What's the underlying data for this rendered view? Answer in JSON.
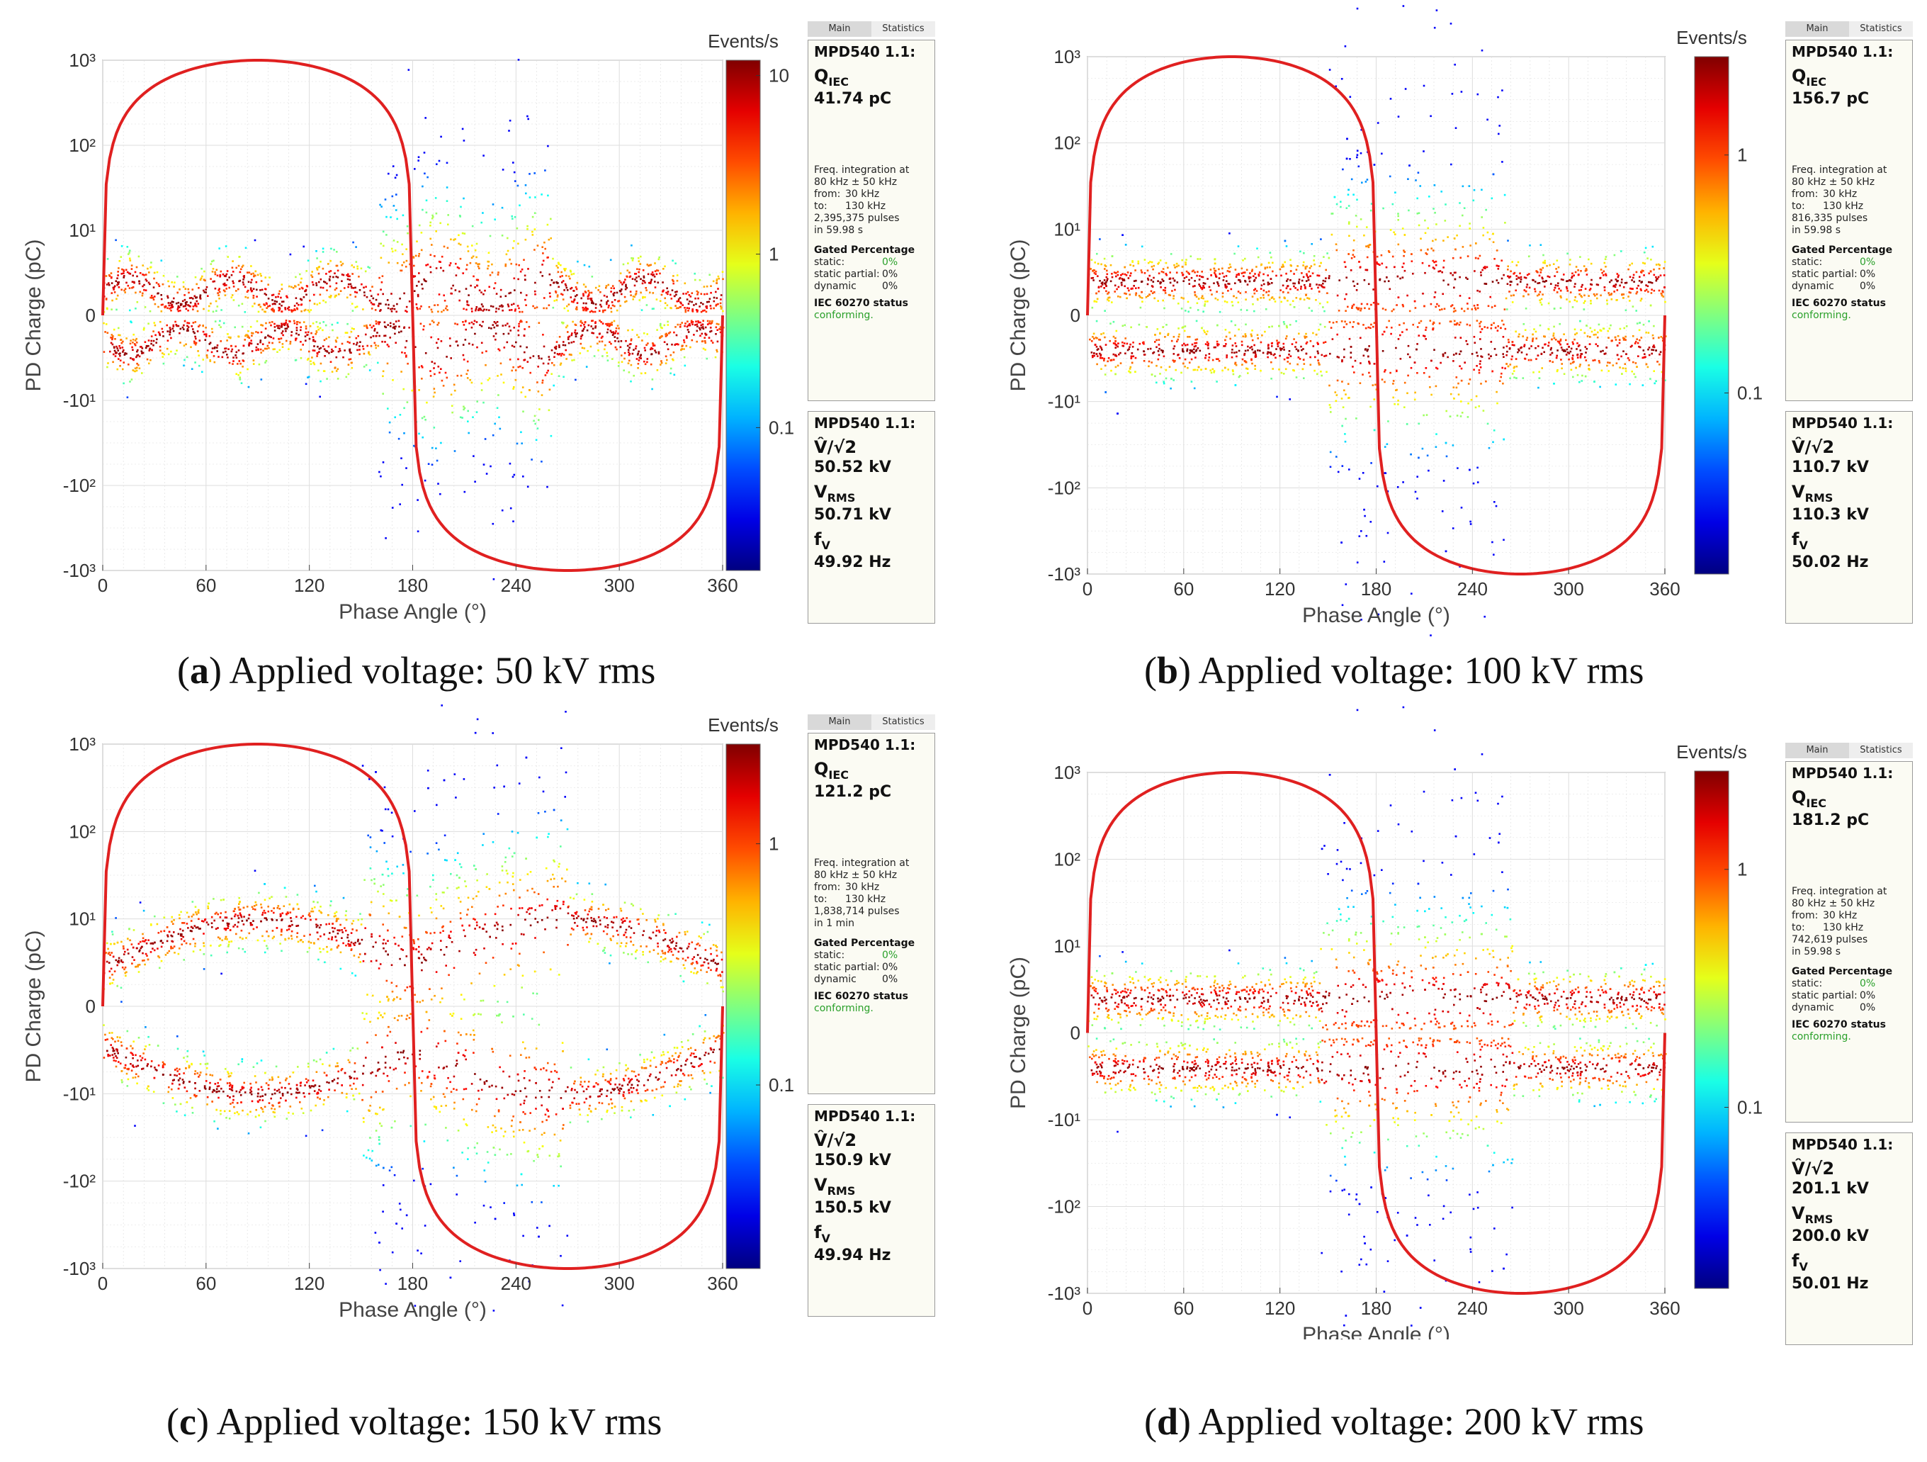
{
  "panels": [
    {
      "id": "a",
      "caption_letter": "a",
      "caption_text": "Applied voltage: 50 kV rms",
      "chart_data": {
        "type": "scatter",
        "xlabel": "Phase Angle (°)",
        "ylabel": "PD Charge (pC)",
        "xlim": [
          0,
          360
        ],
        "x_ticks": [
          "0",
          "60",
          "120",
          "180",
          "240",
          "300",
          "360"
        ],
        "y_ticks": [
          "10³",
          "10²",
          "10¹",
          "0",
          "-10¹",
          "-10²",
          "-10³"
        ],
        "y_scale": "symmetric-log",
        "grid": true,
        "colorbar_label": "Events/s",
        "colorbar_ticks": [
          "10",
          "1",
          "0.1"
        ],
        "sine_peak_pC": 1000,
        "band_center_pC": 3,
        "band_modulation": "wavy",
        "scatter_phase_range": [
          160,
          260
        ],
        "scatter_extent_pC": 60
      },
      "info": {
        "tab_main": "Main",
        "tab_stats": "Statistics",
        "instrument": "MPD540 1.1:",
        "q_label": "Q",
        "q_sub": "IEC",
        "q_value": "41.74 pC",
        "freq_line1": "Freq. integration at",
        "freq_line2": "80 kHz ± 50 kHz",
        "from_label": "from:",
        "from_value": "30 kHz",
        "to_label": "to:",
        "to_value": "130 kHz",
        "pulses": "2,395,375 pulses",
        "duration": "in 59.98 s",
        "gated_title": "Gated Percentage",
        "static_label": "static:",
        "static_value": "0%",
        "static_partial_label": "static partial:",
        "static_partial_value": "0%",
        "dynamic_label": "dynamic",
        "dynamic_value": "0%",
        "status_title": "IEC 60270 status",
        "status_value": "conforming.",
        "v_label": "V̂/√2",
        "v_value": "50.52 kV",
        "vrms_label": "V",
        "vrms_sub": "RMS",
        "vrms_value": "50.71 kV",
        "f_label": "f",
        "f_sub": "V",
        "f_value": "49.92 Hz"
      }
    },
    {
      "id": "b",
      "caption_letter": "b",
      "caption_text": "Applied voltage: 100 kV rms",
      "chart_data": {
        "type": "scatter",
        "xlabel": "Phase Angle (°)",
        "ylabel": "PD Charge (pC)",
        "xlim": [
          0,
          360
        ],
        "x_ticks": [
          "0",
          "60",
          "120",
          "180",
          "240",
          "300",
          "360"
        ],
        "y_ticks": [
          "10³",
          "10²",
          "10¹",
          "0",
          "-10¹",
          "-10²",
          "-10³"
        ],
        "y_scale": "symmetric-log",
        "grid": true,
        "colorbar_label": "Events/s",
        "colorbar_ticks": [
          "1",
          "0.1"
        ],
        "sine_peak_pC": 1000,
        "band_center_pC": 4,
        "band_modulation": "flat",
        "scatter_phase_range": [
          150,
          260
        ],
        "scatter_extent_pC": 200
      },
      "info": {
        "tab_main": "Main",
        "tab_stats": "Statistics",
        "instrument": "MPD540 1.1:",
        "q_label": "Q",
        "q_sub": "IEC",
        "q_value": "156.7 pC",
        "freq_line1": "Freq. integration at",
        "freq_line2": "80 kHz ± 50 kHz",
        "from_label": "from:",
        "from_value": "30 kHz",
        "to_label": "to:",
        "to_value": "130 kHz",
        "pulses": "816,335 pulses",
        "duration": "in 59.98 s",
        "gated_title": "Gated Percentage",
        "static_label": "static:",
        "static_value": "0%",
        "static_partial_label": "static partial:",
        "static_partial_value": "0%",
        "dynamic_label": "dynamic",
        "dynamic_value": "0%",
        "status_title": "IEC 60270 status",
        "status_value": "conforming.",
        "v_label": "V̂/√2",
        "v_value": "110.7 kV",
        "vrms_label": "V",
        "vrms_sub": "RMS",
        "vrms_value": "110.3 kV",
        "f_label": "f",
        "f_sub": "V",
        "f_value": "50.02 Hz"
      }
    },
    {
      "id": "c",
      "caption_letter": "c",
      "caption_text": "Applied voltage: 150 kV rms",
      "chart_data": {
        "type": "scatter",
        "xlabel": "Phase Angle (°)",
        "ylabel": "PD Charge (pC)",
        "xlim": [
          0,
          360
        ],
        "x_ticks": [
          "0",
          "60",
          "120",
          "180",
          "240",
          "300",
          "360"
        ],
        "y_ticks": [
          "10³",
          "10²",
          "10¹",
          "0",
          "-10¹",
          "-10²",
          "-10³"
        ],
        "y_scale": "symmetric-log",
        "grid": true,
        "colorbar_label": "Events/s",
        "colorbar_ticks": [
          "1",
          "0.1"
        ],
        "sine_peak_pC": 1000,
        "band_center_pC": 6,
        "band_modulation": "sine",
        "scatter_phase_range": [
          150,
          270
        ],
        "scatter_extent_pC": 200
      },
      "info": {
        "tab_main": "Main",
        "tab_stats": "Statistics",
        "instrument": "MPD540 1.1:",
        "q_label": "Q",
        "q_sub": "IEC",
        "q_value": "121.2 pC",
        "freq_line1": "Freq. integration at",
        "freq_line2": "80 kHz ± 50 kHz",
        "from_label": "from:",
        "from_value": "30 kHz",
        "to_label": "to:",
        "to_value": "130 kHz",
        "pulses": "1,838,714 pulses",
        "duration": "in 1 min",
        "gated_title": "Gated Percentage",
        "static_label": "static:",
        "static_value": "0%",
        "static_partial_label": "static partial:",
        "static_partial_value": "0%",
        "dynamic_label": "dynamic",
        "dynamic_value": "0%",
        "status_title": "IEC 60270 status",
        "status_value": "conforming.",
        "v_label": "V̂/√2",
        "v_value": "150.9 kV",
        "vrms_label": "V",
        "vrms_sub": "RMS",
        "vrms_value": "150.5 kV",
        "f_label": "f",
        "f_sub": "V",
        "f_value": "49.94 Hz"
      }
    },
    {
      "id": "d",
      "caption_letter": "d",
      "caption_text": "Applied voltage: 200 kV rms",
      "chart_data": {
        "type": "scatter",
        "xlabel": "Phase Angle (°)",
        "ylabel": "PD Charge (pC)",
        "xlim": [
          0,
          360
        ],
        "x_ticks": [
          "0",
          "60",
          "120",
          "180",
          "240",
          "300",
          "360"
        ],
        "y_ticks": [
          "10³",
          "10²",
          "10¹",
          "0",
          "-10¹",
          "-10²",
          "-10³"
        ],
        "y_scale": "symmetric-log",
        "grid": true,
        "colorbar_label": "Events/s",
        "colorbar_ticks": [
          "1",
          "0.1"
        ],
        "sine_peak_pC": 1000,
        "band_center_pC": 4,
        "band_modulation": "flat",
        "scatter_phase_range": [
          145,
          265
        ],
        "scatter_extent_pC": 250
      },
      "info": {
        "tab_main": "Main",
        "tab_stats": "Statistics",
        "instrument": "MPD540 1.1:",
        "q_label": "Q",
        "q_sub": "IEC",
        "q_value": "181.2 pC",
        "freq_line1": "Freq. integration at",
        "freq_line2": "80 kHz ± 50 kHz",
        "from_label": "from:",
        "from_value": "30 kHz",
        "to_label": "to:",
        "to_value": "130 kHz",
        "pulses": "742,619 pulses",
        "duration": "in 59.98 s",
        "gated_title": "Gated Percentage",
        "static_label": "static:",
        "static_value": "0%",
        "static_partial_label": "static partial:",
        "static_partial_value": "0%",
        "dynamic_label": "dynamic",
        "dynamic_value": "0%",
        "status_title": "IEC 60270 status",
        "status_value": "conforming.",
        "v_label": "V̂/√2",
        "v_value": "201.1 kV",
        "vrms_label": "V",
        "vrms_sub": "RMS",
        "vrms_value": "200.0 kV",
        "f_label": "f",
        "f_sub": "V",
        "f_value": "50.01 Hz"
      }
    }
  ],
  "colors": {
    "sine": "#e02020",
    "band_core": "#c81e1e",
    "grid": "#dddddd",
    "accent_green": "#2aa02a"
  }
}
